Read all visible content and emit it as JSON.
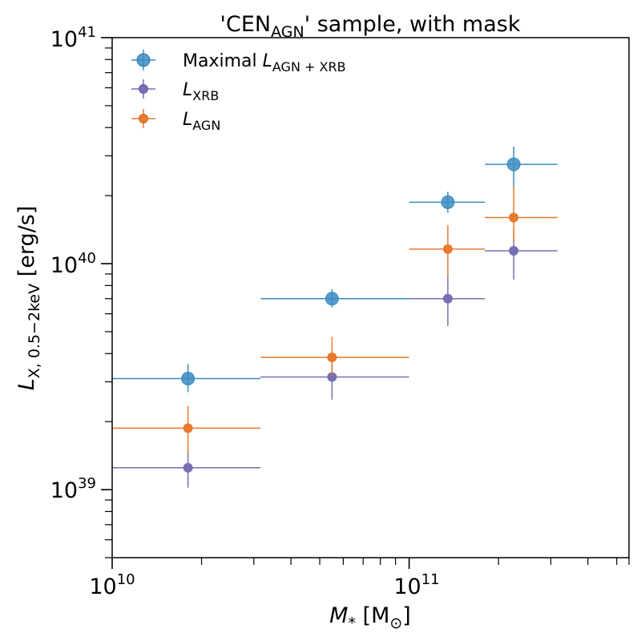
{
  "chart_data": {
    "type": "scatter",
    "title": {
      "pre": "'CEN",
      "sub": "AGN",
      "post": "' sample, with mask"
    },
    "xlabel": {
      "main": "M",
      "sub": "*",
      "post": " [M",
      "post_sub": "⊙",
      "end": "]"
    },
    "ylabel": {
      "main": "L",
      "sub": "X, 0.5−2keV",
      "post": " [erg/s]"
    },
    "x_scale": "log",
    "y_scale": "log",
    "xlim": [
      10000000000.0,
      550000000000.0
    ],
    "ylim": [
      5e+38,
      1e+41
    ],
    "x_ticks": [
      {
        "base": "10",
        "exp": "10",
        "value": 10000000000.0
      },
      {
        "base": "10",
        "exp": "11",
        "value": 100000000000.0
      }
    ],
    "y_ticks": [
      {
        "base": "10",
        "exp": "39",
        "value": 1e+39
      },
      {
        "base": "10",
        "exp": "40",
        "value": 1e+40
      },
      {
        "base": "10",
        "exp": "41",
        "value": 1e+41
      }
    ],
    "grid": false,
    "legend_position": "top-left",
    "series": [
      {
        "name": "Maximal L_AGN+XRB",
        "legend": {
          "main": "Maximal ",
          "italic": "L",
          "sub": "AGN + XRB"
        },
        "color": "#3b8bc2",
        "marker": "large",
        "points": [
          {
            "x": 18000000000.0,
            "y": 3.1e+39,
            "xlo": 10000000000.0,
            "xhi": 31600000000.0,
            "ylo": 2.7e+39,
            "yhi": 3.6e+39
          },
          {
            "x": 55000000000.0,
            "y": 7e+39,
            "xlo": 31600000000.0,
            "xhi": 100000000000.0,
            "ylo": 6.4e+39,
            "yhi": 7.7e+39
          },
          {
            "x": 135000000000.0,
            "y": 1.87e+40,
            "xlo": 100000000000.0,
            "xhi": 180000000000.0,
            "ylo": 1.68e+40,
            "yhi": 2.08e+40
          },
          {
            "x": 225000000000.0,
            "y": 2.75e+40,
            "xlo": 180000000000.0,
            "xhi": 316000000000.0,
            "ylo": 2.2e+40,
            "yhi": 3.3e+40
          }
        ]
      },
      {
        "name": "L_XRB",
        "legend": {
          "main": "",
          "italic": "L",
          "sub": "XRB"
        },
        "color": "#7570b3",
        "marker": "small",
        "points": [
          {
            "x": 18000000000.0,
            "y": 1.25e+39,
            "xlo": 10000000000.0,
            "xhi": 31600000000.0,
            "ylo": 1.02e+39,
            "yhi": 1.48e+39
          },
          {
            "x": 55000000000.0,
            "y": 3.15e+39,
            "xlo": 31600000000.0,
            "xhi": 100000000000.0,
            "ylo": 2.5e+39,
            "yhi": 3.7e+39
          },
          {
            "x": 135000000000.0,
            "y": 7e+39,
            "xlo": 100000000000.0,
            "xhi": 180000000000.0,
            "ylo": 5.3e+39,
            "yhi": 8.8e+39
          },
          {
            "x": 225000000000.0,
            "y": 1.14e+40,
            "xlo": 180000000000.0,
            "xhi": 316000000000.0,
            "ylo": 8.5e+39,
            "yhi": 1.42e+40
          }
        ]
      },
      {
        "name": "L_AGN",
        "legend": {
          "main": "",
          "italic": "L",
          "sub": "AGN"
        },
        "color": "#e8792d",
        "marker": "small",
        "points": [
          {
            "x": 18000000000.0,
            "y": 1.87e+39,
            "xlo": 10000000000.0,
            "xhi": 31600000000.0,
            "ylo": 1.45e+39,
            "yhi": 2.35e+39
          },
          {
            "x": 55000000000.0,
            "y": 3.85e+39,
            "xlo": 31600000000.0,
            "xhi": 100000000000.0,
            "ylo": 3.2e+39,
            "yhi": 4.75e+39
          },
          {
            "x": 135000000000.0,
            "y": 1.16e+40,
            "xlo": 100000000000.0,
            "xhi": 180000000000.0,
            "ylo": 8.8e+39,
            "yhi": 1.48e+40
          },
          {
            "x": 225000000000.0,
            "y": 1.6e+40,
            "xlo": 180000000000.0,
            "xhi": 316000000000.0,
            "ylo": 1.25e+40,
            "yhi": 2.2e+40
          }
        ]
      }
    ]
  }
}
